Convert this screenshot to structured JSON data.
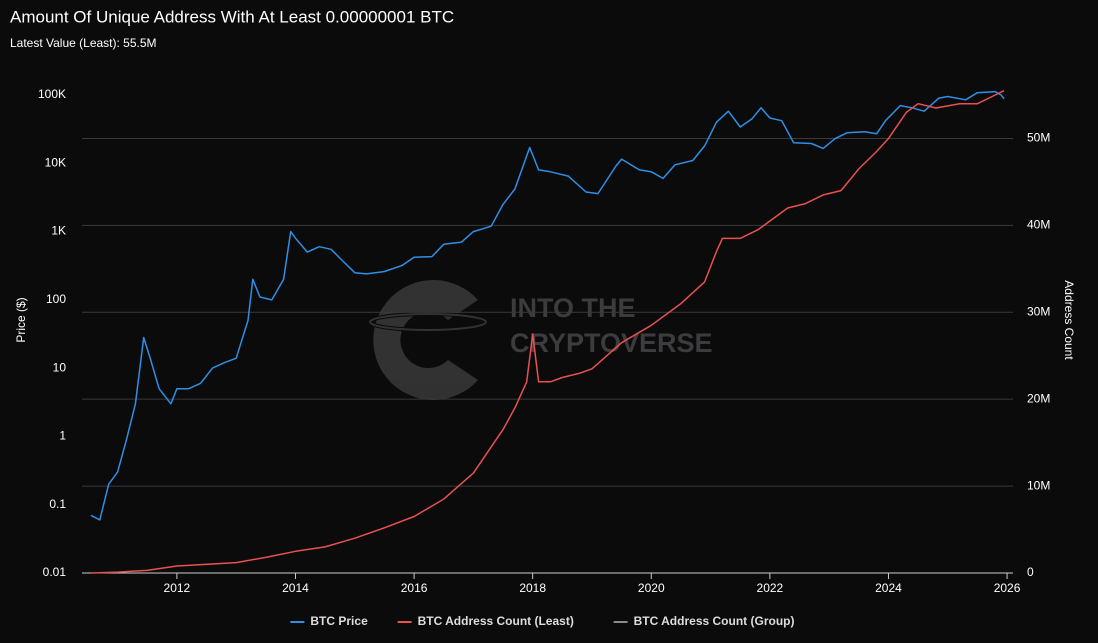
{
  "chart_data": {
    "type": "line",
    "title": "Amount Of Unique Address With At Least 0.00000001 BTC",
    "subtitle": "Latest Value (Least): 55.5M",
    "y_label": "Price ($)",
    "y2_label": "Address Count",
    "watermark": [
      "INTO THE",
      "CRYPTOVERSE"
    ],
    "xlim": [
      2010.4,
      2026.1
    ],
    "xticks": [
      2012,
      2014,
      2016,
      2018,
      2020,
      2022,
      2024,
      2026
    ],
    "ylim": [
      0.01,
      100000
    ],
    "yscale": "log",
    "yticks": [
      0.01,
      0.1,
      1,
      10,
      100,
      {
        "value": 1000,
        "label": "1K"
      },
      {
        "value": 10000,
        "label": "10K"
      },
      {
        "value": 100000,
        "label": "100K"
      }
    ],
    "y2lim": [
      0,
      55000000
    ],
    "y2ticks": [
      0,
      {
        "value": 10000000,
        "label": "10M"
      },
      {
        "value": 20000000,
        "label": "20M"
      },
      {
        "value": 30000000,
        "label": "30M"
      },
      {
        "value": 40000000,
        "label": "40M"
      },
      {
        "value": 50000000,
        "label": "50M"
      }
    ],
    "grid": "y2",
    "legend": "bottom",
    "series": [
      {
        "name": "BTC Price",
        "color": "#2f8fe6",
        "x": [
          2010.55,
          2010.7,
          2010.85,
          2011.0,
          2011.15,
          2011.3,
          2011.44,
          2011.55,
          2011.7,
          2011.9,
          2012.0,
          2012.2,
          2012.4,
          2012.6,
          2012.8,
          2013.0,
          2013.2,
          2013.28,
          2013.4,
          2013.6,
          2013.8,
          2013.92,
          2014.0,
          2014.2,
          2014.4,
          2014.6,
          2014.8,
          2015.0,
          2015.2,
          2015.5,
          2015.8,
          2016.0,
          2016.3,
          2016.5,
          2016.8,
          2017.0,
          2017.3,
          2017.5,
          2017.7,
          2017.95,
          2018.1,
          2018.3,
          2018.6,
          2018.9,
          2019.1,
          2019.4,
          2019.5,
          2019.8,
          2020.0,
          2020.2,
          2020.4,
          2020.7,
          2020.9,
          2021.1,
          2021.3,
          2021.5,
          2021.7,
          2021.85,
          2022.0,
          2022.2,
          2022.4,
          2022.7,
          2022.9,
          2023.1,
          2023.3,
          2023.6,
          2023.8,
          2023.95,
          2024.2,
          2024.4,
          2024.6,
          2024.85,
          2025.0,
          2025.3,
          2025.5,
          2025.8,
          2025.9,
          2025.95
        ],
        "values": [
          0.07,
          0.06,
          0.2,
          0.3,
          0.9,
          3,
          28,
          14,
          5,
          3,
          5,
          5,
          6,
          10,
          12,
          14,
          50,
          200,
          110,
          100,
          200,
          1000,
          800,
          500,
          600,
          550,
          370,
          250,
          240,
          260,
          320,
          420,
          430,
          650,
          700,
          1000,
          1200,
          2500,
          4200,
          17000,
          8000,
          7500,
          6500,
          3800,
          3600,
          9000,
          11500,
          8000,
          7500,
          6000,
          9500,
          11000,
          18000,
          40000,
          58000,
          34000,
          45000,
          65000,
          46000,
          42000,
          20000,
          19500,
          16500,
          23000,
          28000,
          29000,
          27000,
          42000,
          70000,
          65000,
          58000,
          90000,
          95000,
          85000,
          108000,
          112000,
          100000,
          88000
        ]
      },
      {
        "name": "BTC Address Count (Least)",
        "color": "#e8514f",
        "axis": "y2",
        "x": [
          2010.55,
          2011.0,
          2011.5,
          2012.0,
          2013.0,
          2013.5,
          2014.0,
          2014.5,
          2015.0,
          2015.5,
          2016.0,
          2016.5,
          2017.0,
          2017.5,
          2017.7,
          2017.9,
          2018.0,
          2018.1,
          2018.3,
          2018.5,
          2018.8,
          2019.0,
          2019.5,
          2020.0,
          2020.5,
          2020.9,
          2021.1,
          2021.2,
          2021.5,
          2021.8,
          2022.0,
          2022.3,
          2022.6,
          2022.9,
          2023.2,
          2023.5,
          2023.8,
          2024.0,
          2024.3,
          2024.5,
          2024.8,
          2025.2,
          2025.5,
          2025.8,
          2025.95
        ],
        "values": [
          0,
          100000,
          300000,
          800000,
          1200000,
          1800000,
          2500000,
          3000000,
          4000000,
          5200000,
          6500000,
          8500000,
          11500000,
          16500000,
          19000000,
          22000000,
          27500000,
          22000000,
          22000000,
          22500000,
          23000000,
          23500000,
          26500000,
          28500000,
          31000000,
          33500000,
          37000000,
          38500000,
          38500000,
          39500000,
          40500000,
          42000000,
          42500000,
          43500000,
          44000000,
          46500000,
          48500000,
          50000000,
          53000000,
          54000000,
          53500000,
          54000000,
          54000000,
          55000000,
          55500000
        ]
      },
      {
        "name": "BTC Address Count (Group)",
        "color": "#8a8a8a",
        "axis": "y2"
      }
    ]
  }
}
